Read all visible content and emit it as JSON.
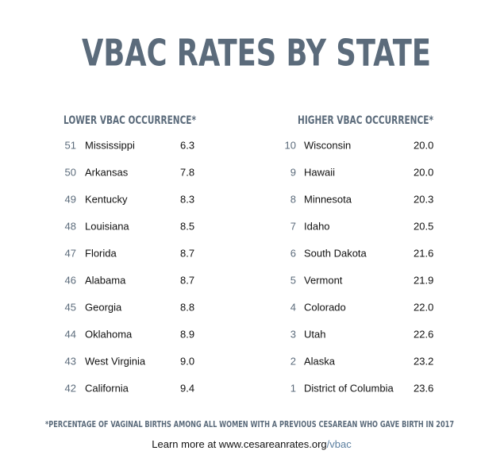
{
  "title": "VBAC RATES BY STATE",
  "columns": [
    {
      "heading": "LOWER VBAC OCCURRENCE*",
      "rows": [
        {
          "rank": "51",
          "state": "Mississippi",
          "rate": "6.3"
        },
        {
          "rank": "50",
          "state": "Arkansas",
          "rate": "7.8"
        },
        {
          "rank": "49",
          "state": "Kentucky",
          "rate": "8.3"
        },
        {
          "rank": "48",
          "state": "Louisiana",
          "rate": "8.5"
        },
        {
          "rank": "47",
          "state": "Florida",
          "rate": "8.7"
        },
        {
          "rank": "46",
          "state": "Alabama",
          "rate": "8.7"
        },
        {
          "rank": "45",
          "state": "Georgia",
          "rate": "8.8"
        },
        {
          "rank": "44",
          "state": "Oklahoma",
          "rate": "8.9"
        },
        {
          "rank": "43",
          "state": "West Virginia",
          "rate": "9.0"
        },
        {
          "rank": "42",
          "state": "California",
          "rate": "9.4"
        }
      ]
    },
    {
      "heading": "HIGHER VBAC OCCURRENCE*",
      "rows": [
        {
          "rank": "10",
          "state": "Wisconsin",
          "rate": "20.0"
        },
        {
          "rank": "9",
          "state": "Hawaii",
          "rate": "20.0"
        },
        {
          "rank": "8",
          "state": "Minnesota",
          "rate": "20.3"
        },
        {
          "rank": "7",
          "state": "Idaho",
          "rate": "20.5"
        },
        {
          "rank": "6",
          "state": "South Dakota",
          "rate": "21.6"
        },
        {
          "rank": "5",
          "state": "Vermont",
          "rate": "21.9"
        },
        {
          "rank": "4",
          "state": "Colorado",
          "rate": "22.0"
        },
        {
          "rank": "3",
          "state": "Utah",
          "rate": "22.6"
        },
        {
          "rank": "2",
          "state": "Alaska",
          "rate": "23.2"
        },
        {
          "rank": "1",
          "state": "District of Columbia",
          "rate": "23.6"
        }
      ]
    }
  ],
  "footnote": "*PERCENTAGE OF VAGINAL BIRTHS AMONG ALL WOMEN WITH A PREVIOUS CESAREAN WHO GAVE BIRTH IN 2017",
  "footer": {
    "text": "Learn more at www.cesareanrates.org",
    "path": "/vbac"
  }
}
